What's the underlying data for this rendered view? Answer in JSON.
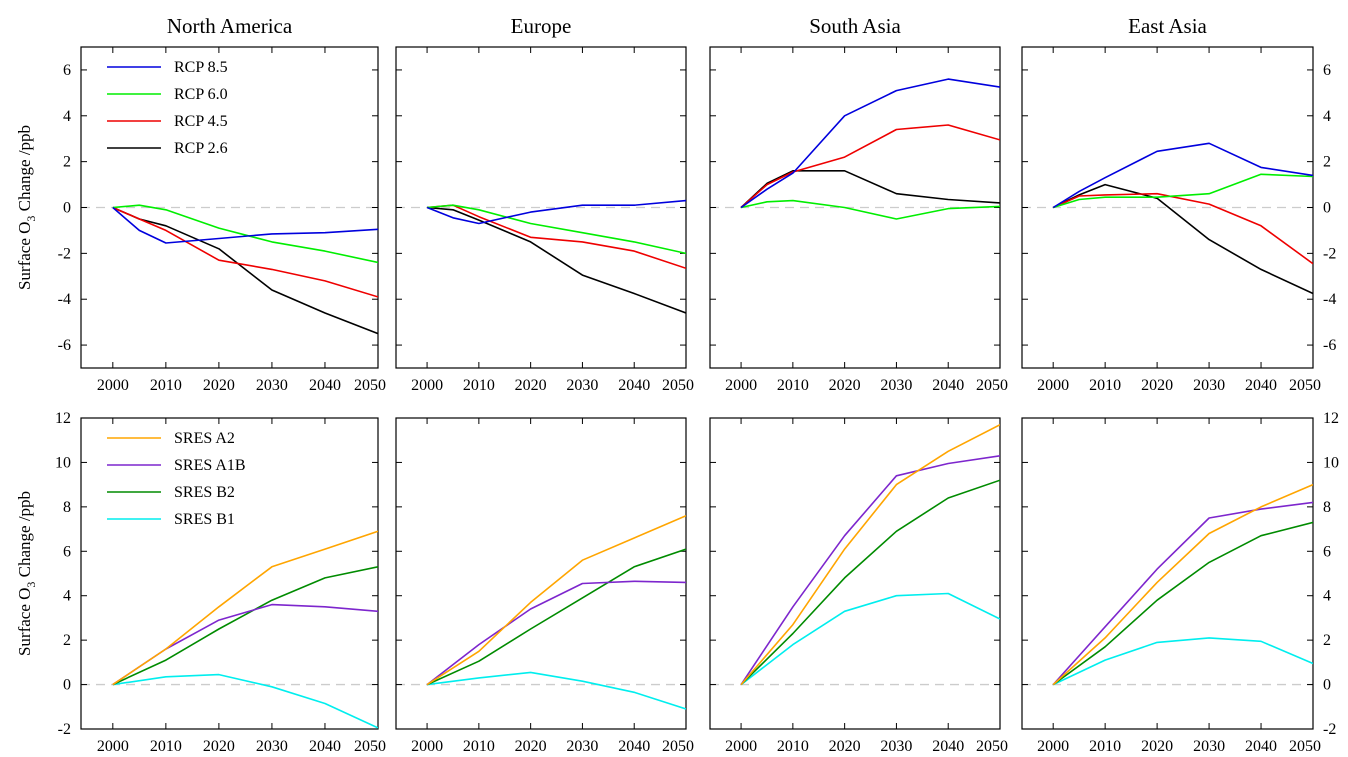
{
  "figure": {
    "column_titles": [
      "North America",
      "Europe",
      "South Asia",
      "East Asia"
    ],
    "ylabel": {
      "prefix": "Surface O",
      "subscript": "3",
      "suffix": " Change  /ppb"
    }
  },
  "colors": {
    "RCP 8.5": "#0000dd",
    "RCP 6.0": "#00ee00",
    "RCP 4.5": "#ee0000",
    "RCP 2.6": "#000000",
    "SRES A2": "#ffa500",
    "SRES A1B": "#7d26cd",
    "SRES B2": "#008b00",
    "SRES B1": "#00eeee",
    "zero_line": "#cccccc"
  },
  "chart_data": [
    {
      "type": "line",
      "row": "RCP",
      "title": "North America",
      "x": [
        2000,
        2005,
        2010,
        2020,
        2030,
        2040,
        2050
      ],
      "xlim": [
        1994,
        2050
      ],
      "ylim": [
        -7,
        7
      ],
      "xticks": [
        2000,
        2010,
        2020,
        2030,
        2040,
        2050
      ],
      "yticks": [
        -6,
        -4,
        -2,
        0,
        2,
        4,
        6
      ],
      "legend": "top-left",
      "series": [
        {
          "name": "RCP 8.5",
          "values": [
            0,
            -1.0,
            -1.55,
            -1.35,
            -1.15,
            -1.1,
            -0.95
          ]
        },
        {
          "name": "RCP 6.0",
          "values": [
            0,
            0.1,
            -0.1,
            -0.9,
            -1.5,
            -1.9,
            -2.4
          ]
        },
        {
          "name": "RCP 4.5",
          "values": [
            0,
            -0.5,
            -1.0,
            -2.3,
            -2.7,
            -3.2,
            -3.9
          ]
        },
        {
          "name": "RCP 2.6",
          "values": [
            0,
            -0.5,
            -0.8,
            -1.8,
            -3.6,
            -4.6,
            -5.5
          ]
        }
      ]
    },
    {
      "type": "line",
      "row": "RCP",
      "title": "Europe",
      "x": [
        2000,
        2005,
        2010,
        2020,
        2030,
        2040,
        2050
      ],
      "xlim": [
        1994,
        2050
      ],
      "ylim": [
        -7,
        7
      ],
      "xticks": [
        2000,
        2010,
        2020,
        2030,
        2040,
        2050
      ],
      "yticks": [
        -6,
        -4,
        -2,
        0,
        2,
        4,
        6
      ],
      "series": [
        {
          "name": "RCP 8.5",
          "values": [
            0,
            -0.45,
            -0.7,
            -0.2,
            0.1,
            0.1,
            0.3
          ]
        },
        {
          "name": "RCP 6.0",
          "values": [
            0,
            0.1,
            -0.1,
            -0.7,
            -1.1,
            -1.5,
            -2.0
          ]
        },
        {
          "name": "RCP 4.5",
          "values": [
            0,
            0.1,
            -0.4,
            -1.3,
            -1.5,
            -1.9,
            -2.65
          ]
        },
        {
          "name": "RCP 2.6",
          "values": [
            0,
            -0.1,
            -0.55,
            -1.5,
            -2.95,
            -3.75,
            -4.6
          ]
        }
      ]
    },
    {
      "type": "line",
      "row": "RCP",
      "title": "South Asia",
      "x": [
        2000,
        2005,
        2010,
        2020,
        2030,
        2040,
        2050
      ],
      "xlim": [
        1994,
        2050
      ],
      "ylim": [
        -7,
        7
      ],
      "xticks": [
        2000,
        2010,
        2020,
        2030,
        2040,
        2050
      ],
      "yticks": [
        -6,
        -4,
        -2,
        0,
        2,
        4,
        6
      ],
      "series": [
        {
          "name": "RCP 8.5",
          "values": [
            0,
            0.8,
            1.5,
            4.0,
            5.1,
            5.6,
            5.25
          ]
        },
        {
          "name": "RCP 6.0",
          "values": [
            0,
            0.25,
            0.3,
            0.0,
            -0.5,
            -0.05,
            0.05
          ]
        },
        {
          "name": "RCP 4.5",
          "values": [
            0,
            1.0,
            1.55,
            2.2,
            3.4,
            3.6,
            2.95
          ]
        },
        {
          "name": "RCP 2.6",
          "values": [
            0,
            1.05,
            1.6,
            1.6,
            0.6,
            0.35,
            0.2
          ]
        }
      ]
    },
    {
      "type": "line",
      "row": "RCP",
      "title": "East Asia",
      "x": [
        2000,
        2005,
        2010,
        2020,
        2030,
        2040,
        2050
      ],
      "xlim": [
        1994,
        2050
      ],
      "ylim": [
        -7,
        7
      ],
      "xticks": [
        2000,
        2010,
        2020,
        2030,
        2040,
        2050
      ],
      "yticks": [
        -6,
        -4,
        -2,
        0,
        2,
        4,
        6
      ],
      "series": [
        {
          "name": "RCP 8.5",
          "values": [
            0,
            0.7,
            1.3,
            2.45,
            2.8,
            1.75,
            1.4
          ]
        },
        {
          "name": "RCP 6.0",
          "values": [
            0,
            0.35,
            0.45,
            0.45,
            0.6,
            1.45,
            1.35
          ]
        },
        {
          "name": "RCP 4.5",
          "values": [
            0,
            0.5,
            0.55,
            0.6,
            0.15,
            -0.8,
            -2.45
          ]
        },
        {
          "name": "RCP 2.6",
          "values": [
            0,
            0.55,
            1.0,
            0.4,
            -1.4,
            -2.7,
            -3.75
          ]
        }
      ]
    },
    {
      "type": "line",
      "row": "SRES",
      "title": "",
      "x": [
        2000,
        2010,
        2020,
        2030,
        2040,
        2050
      ],
      "xlim": [
        1994,
        2050
      ],
      "ylim": [
        -2,
        12
      ],
      "xticks": [
        2000,
        2010,
        2020,
        2030,
        2040,
        2050
      ],
      "yticks": [
        -2,
        0,
        2,
        4,
        6,
        8,
        10,
        12
      ],
      "legend": "top-left",
      "series": [
        {
          "name": "SRES A2",
          "values": [
            0,
            1.6,
            3.5,
            5.3,
            6.1,
            6.9
          ]
        },
        {
          "name": "SRES A1B",
          "values": [
            0,
            1.6,
            2.9,
            3.6,
            3.5,
            3.3
          ]
        },
        {
          "name": "SRES B2",
          "values": [
            0,
            1.1,
            2.5,
            3.8,
            4.8,
            5.3
          ]
        },
        {
          "name": "SRES B1",
          "values": [
            0,
            0.35,
            0.45,
            -0.1,
            -0.85,
            -1.95
          ]
        }
      ]
    },
    {
      "type": "line",
      "row": "SRES",
      "title": "",
      "x": [
        2000,
        2010,
        2020,
        2030,
        2040,
        2050
      ],
      "xlim": [
        1994,
        2050
      ],
      "ylim": [
        -2,
        12
      ],
      "xticks": [
        2000,
        2010,
        2020,
        2030,
        2040,
        2050
      ],
      "yticks": [
        -2,
        0,
        2,
        4,
        6,
        8,
        10,
        12
      ],
      "series": [
        {
          "name": "SRES A2",
          "values": [
            0,
            1.5,
            3.7,
            5.6,
            6.6,
            7.6
          ]
        },
        {
          "name": "SRES A1B",
          "values": [
            0,
            1.8,
            3.4,
            4.55,
            4.65,
            4.6
          ]
        },
        {
          "name": "SRES B2",
          "values": [
            0,
            1.05,
            2.5,
            3.9,
            5.3,
            6.1
          ]
        },
        {
          "name": "SRES B1",
          "values": [
            0,
            0.3,
            0.55,
            0.15,
            -0.35,
            -1.1
          ]
        }
      ]
    },
    {
      "type": "line",
      "row": "SRES",
      "title": "",
      "x": [
        2000,
        2010,
        2020,
        2030,
        2040,
        2050
      ],
      "xlim": [
        1994,
        2050
      ],
      "ylim": [
        -2,
        12
      ],
      "xticks": [
        2000,
        2010,
        2020,
        2030,
        2040,
        2050
      ],
      "yticks": [
        -2,
        0,
        2,
        4,
        6,
        8,
        10,
        12
      ],
      "series": [
        {
          "name": "SRES A2",
          "values": [
            0,
            2.7,
            6.1,
            9.0,
            10.5,
            11.7
          ]
        },
        {
          "name": "SRES A1B",
          "values": [
            0,
            3.5,
            6.7,
            9.4,
            9.95,
            10.3
          ]
        },
        {
          "name": "SRES B2",
          "values": [
            0,
            2.3,
            4.8,
            6.9,
            8.4,
            9.2
          ]
        },
        {
          "name": "SRES B1",
          "values": [
            0,
            1.8,
            3.3,
            4.0,
            4.1,
            2.95
          ]
        }
      ]
    },
    {
      "type": "line",
      "row": "SRES",
      "title": "",
      "x": [
        2000,
        2010,
        2020,
        2030,
        2040,
        2050
      ],
      "xlim": [
        1994,
        2050
      ],
      "ylim": [
        -2,
        12
      ],
      "xticks": [
        2000,
        2010,
        2020,
        2030,
        2040,
        2050
      ],
      "yticks": [
        -2,
        0,
        2,
        4,
        6,
        8,
        10,
        12
      ],
      "series": [
        {
          "name": "SRES A2",
          "values": [
            0,
            2.1,
            4.6,
            6.8,
            8.0,
            9.0
          ]
        },
        {
          "name": "SRES A1B",
          "values": [
            0,
            2.6,
            5.2,
            7.5,
            7.9,
            8.2
          ]
        },
        {
          "name": "SRES B2",
          "values": [
            0,
            1.7,
            3.8,
            5.5,
            6.7,
            7.3
          ]
        },
        {
          "name": "SRES B1",
          "values": [
            0,
            1.1,
            1.9,
            2.1,
            1.95,
            0.95
          ]
        }
      ]
    }
  ]
}
